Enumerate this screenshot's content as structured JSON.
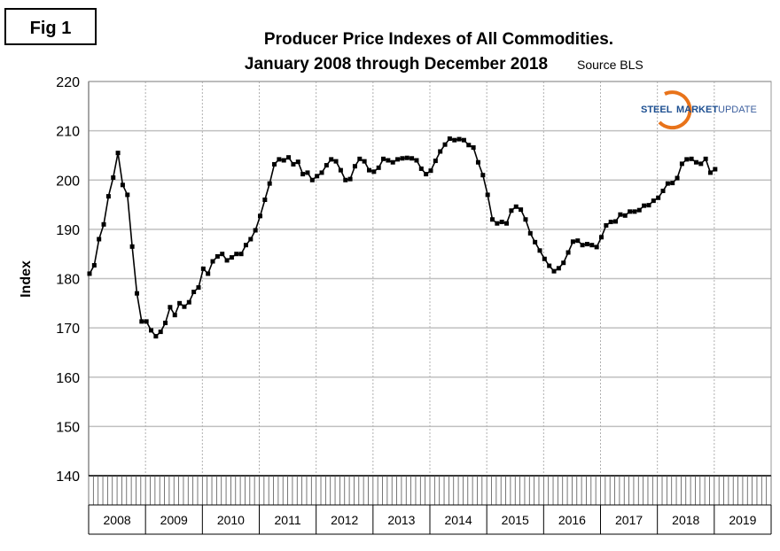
{
  "figure_label": "Fig 1",
  "logo_text": {
    "steel": "STEEL",
    "market": "MARKET",
    "update": "UPDATE"
  },
  "colors": {
    "line": "#000000",
    "grid": "#c0c0c0",
    "logo_blue": "#1d4f91",
    "logo_orange": "#e8731a"
  },
  "chart_data": {
    "type": "line",
    "title": "Producer Price Indexes of All Commodities.",
    "subtitle": "January 2008 through December 2018",
    "source": "Source BLS",
    "ylabel": "Index",
    "xlabel": "",
    "ylim": [
      140,
      220
    ],
    "yticks": [
      140,
      150,
      160,
      170,
      180,
      190,
      200,
      210,
      220
    ],
    "year_labels": [
      "2008",
      "2009",
      "2010",
      "2011",
      "2012",
      "2013",
      "2014",
      "2015",
      "2016",
      "2017",
      "2018",
      "2019"
    ],
    "grid": true,
    "legend": "none",
    "marker": "square",
    "start": "2008-01",
    "frequency": "monthly",
    "values": [
      181,
      182.7,
      188,
      191,
      196.7,
      200.5,
      205.5,
      199,
      197,
      186.5,
      177,
      171.3,
      171.3,
      169.5,
      168.3,
      169.2,
      171,
      174.2,
      172.6,
      175,
      174.3,
      175.2,
      177.3,
      178.2,
      182,
      181,
      183.5,
      184.5,
      185,
      183.7,
      184.3,
      185,
      185,
      186.8,
      188,
      189.8,
      192.7,
      196,
      199.3,
      203.2,
      204.2,
      204,
      204.6,
      203.2,
      203.7,
      201.2,
      201.5,
      200,
      200.8,
      201.5,
      203,
      204.2,
      203.8,
      202,
      200,
      200.2,
      202.8,
      204.3,
      203.8,
      202,
      201.7,
      202.5,
      204.3,
      204,
      203.6,
      204.2,
      204.4,
      204.5,
      204.4,
      204,
      202.3,
      201.2,
      201.9,
      203.9,
      205.8,
      207.2,
      208.4,
      208.1,
      208.3,
      208.1,
      207.1,
      206.6,
      203.6,
      201,
      197,
      192,
      191.2,
      191.5,
      191.2,
      193.8,
      194.6,
      194,
      192,
      189.2,
      187.4,
      185.7,
      184,
      182.6,
      181.5,
      182.1,
      183.2,
      185.3,
      187.5,
      187.7,
      186.8,
      187,
      186.8,
      186.4,
      188.4,
      190.8,
      191.5,
      191.6,
      193,
      192.8,
      193.6,
      193.6,
      193.9,
      194.8,
      194.9,
      195.8,
      196.4,
      197.8,
      199.3,
      199.4,
      200.4,
      203.3,
      204.2,
      204.3,
      203.6,
      203.3,
      204.3,
      201.5,
      202.2
    ]
  }
}
